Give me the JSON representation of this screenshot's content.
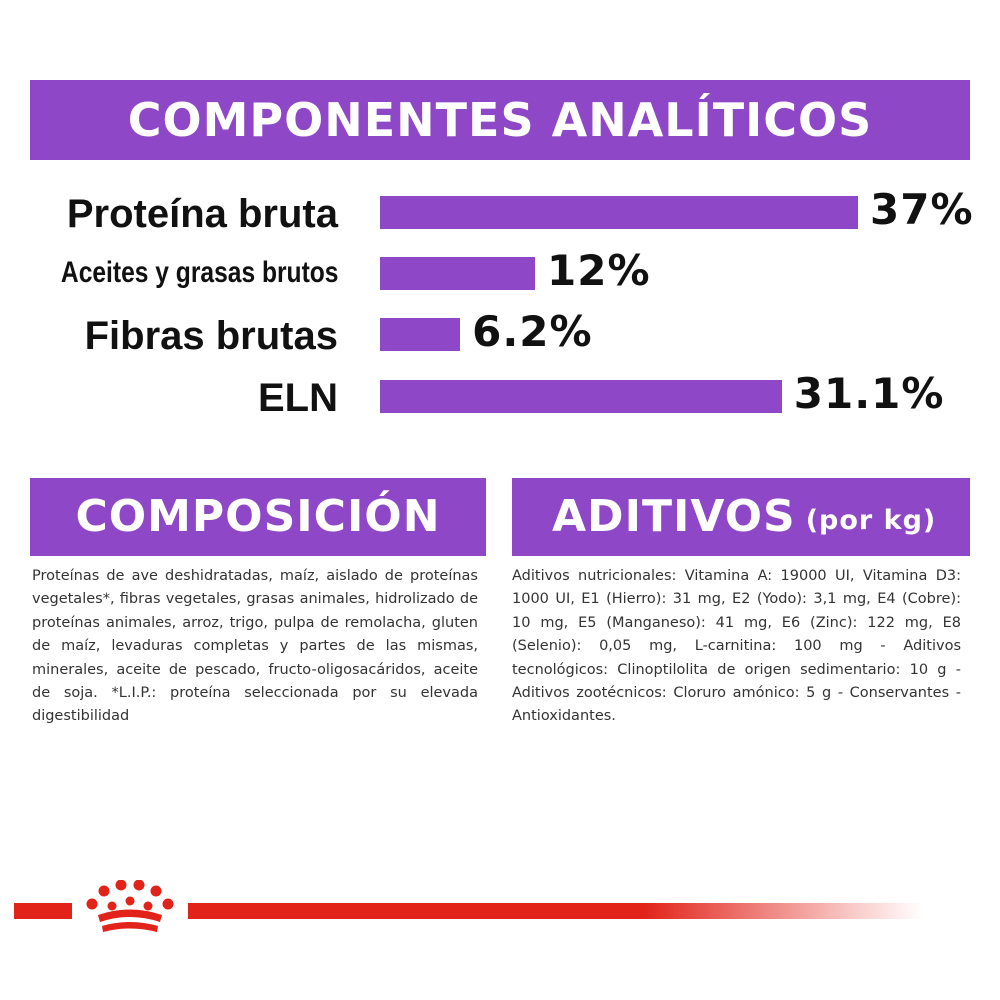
{
  "header": {
    "title": "COMPONENTES ANALÍTICOS"
  },
  "chart_data": {
    "type": "bar",
    "orientation": "horizontal",
    "title": "COMPONENTES ANALÍTICOS",
    "categories": [
      "Proteína bruta",
      "Aceites y grasas brutos",
      "Fibras brutas",
      "ELN"
    ],
    "values": [
      37,
      12,
      6.2,
      31.1
    ],
    "value_labels": [
      "37%",
      "12%",
      "6.2%",
      "31.1%"
    ],
    "unit": "%",
    "xlim": [
      0,
      37
    ],
    "bar_color": "#8e47c6",
    "grid": false,
    "legend": "none"
  },
  "composition": {
    "title": "COMPOSICIÓN",
    "text": "Proteínas de ave deshidratadas, maíz, aislado de proteínas vegetales*, fibras vegetales, grasas animales, hidrolizado de proteínas animales, arroz, trigo, pulpa de remolacha, gluten de maíz, levaduras completas y partes de las mismas, minerales, aceite de pescado, fructo-oligosacáridos, aceite de soja. *L.I.P.: proteína seleccionada por su elevada digestibilidad"
  },
  "additives": {
    "title": "ADITIVOS",
    "unit": "(por kg)",
    "text": "Aditivos nutricionales: Vitamina A: 19000 UI, Vitamina D3: 1000 UI, E1 (Hierro): 31 mg, E2 (Yodo): 3,1 mg, E4 (Cobre): 10 mg, E5 (Manganeso): 41 mg, E6 (Zinc): 122 mg, E8 (Selenio): 0,05 mg, L-carnitina: 100 mg - Aditivos tecnológicos: Clinoptilolita de origen sedimentario: 10 g - Aditivos zootécnicos: Cloruro amónico: 5 g - Conservantes - Antioxidantes."
  },
  "brand": {
    "logo_icon": "royal-canin-crown-icon",
    "accent_color": "#e2231a"
  }
}
